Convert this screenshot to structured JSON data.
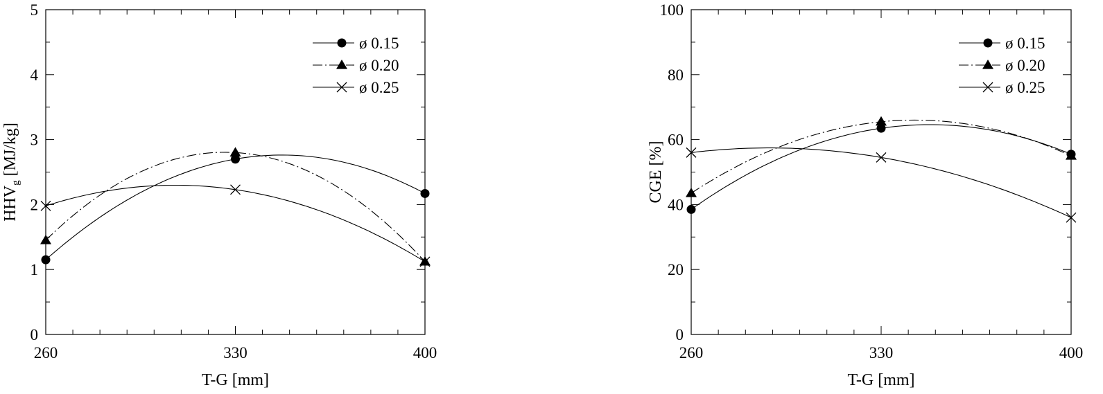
{
  "chart_data": [
    {
      "type": "line",
      "xlabel": "T-G [mm]",
      "ylabel_main": "HHV",
      "ylabel_sub": "g",
      "ylabel_tail": " [MJ/kg]",
      "x": [
        260,
        330,
        400
      ],
      "xticks": [
        260,
        330,
        400
      ],
      "xlim": [
        260,
        400
      ],
      "ylim": [
        0,
        5
      ],
      "yticks": [
        0,
        1,
        2,
        3,
        4,
        5
      ],
      "legend_position": "top-right",
      "series": [
        {
          "name": "ø 0.15",
          "marker": "circle",
          "line": "solid",
          "values": [
            1.15,
            2.7,
            2.17
          ]
        },
        {
          "name": "ø 0.20",
          "marker": "triangle",
          "line": "dash-dot",
          "values": [
            1.45,
            2.8,
            1.12
          ]
        },
        {
          "name": "ø 0.25",
          "marker": "x",
          "line": "solid",
          "values": [
            1.98,
            2.23,
            1.12
          ]
        }
      ]
    },
    {
      "type": "line",
      "xlabel": "T-G [mm]",
      "ylabel_main": "CGE [%]",
      "ylabel_sub": "",
      "ylabel_tail": "",
      "x": [
        260,
        330,
        400
      ],
      "xticks": [
        260,
        330,
        400
      ],
      "xlim": [
        260,
        400
      ],
      "ylim": [
        0,
        100
      ],
      "yticks": [
        0,
        20,
        40,
        60,
        80,
        100
      ],
      "legend_position": "top-right",
      "series": [
        {
          "name": "ø 0.15",
          "marker": "circle",
          "line": "solid",
          "values": [
            38.5,
            63.5,
            55.5
          ]
        },
        {
          "name": "ø 0.20",
          "marker": "triangle",
          "line": "dash-dot",
          "values": [
            43.5,
            65.5,
            55.0
          ]
        },
        {
          "name": "ø 0.25",
          "marker": "x",
          "line": "solid",
          "values": [
            56.0,
            54.5,
            36.0
          ]
        }
      ]
    }
  ]
}
